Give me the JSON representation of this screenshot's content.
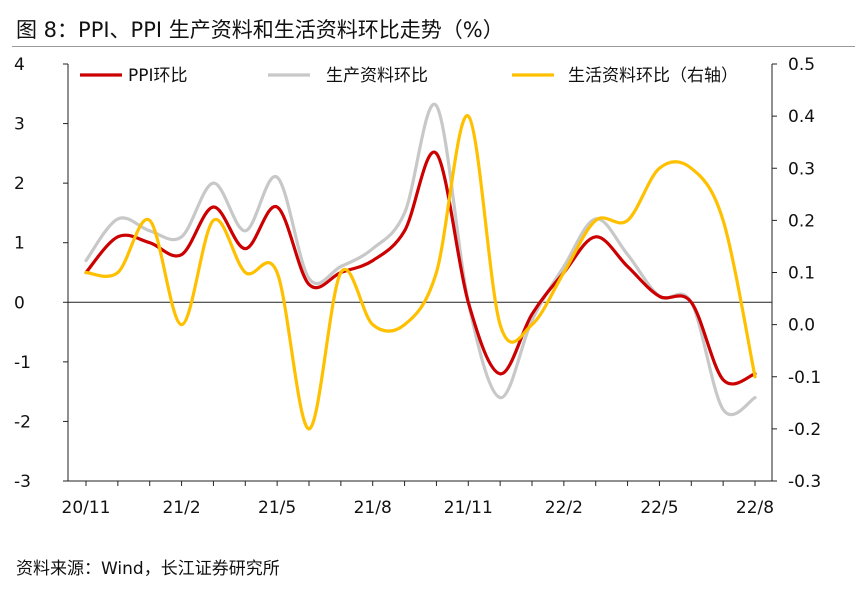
{
  "figure": {
    "title": "图 8：PPI、PPI 生产资料和生活资料环比走势（%）",
    "source": "资料来源：Wind，长江证券研究所"
  },
  "chart_data": {
    "type": "line",
    "title": "PPI、PPI 生产资料和生活资料环比走势（%）",
    "x": [
      "20/11",
      "20/12",
      "21/1",
      "21/2",
      "21/3",
      "21/4",
      "21/5",
      "21/6",
      "21/7",
      "21/8",
      "21/9",
      "21/10",
      "21/11",
      "21/12",
      "22/1",
      "22/2",
      "22/3",
      "22/4",
      "22/5",
      "22/6",
      "22/7",
      "22/8"
    ],
    "x_tick_labels": [
      "20/11",
      "21/2",
      "21/5",
      "21/8",
      "21/11",
      "22/2",
      "22/5",
      "22/8"
    ],
    "left_axis": {
      "label": "%",
      "ylim": [
        -3,
        4
      ],
      "ticks": [
        "4",
        "3",
        "2",
        "1",
        "0",
        "-1",
        "-2",
        "-3"
      ]
    },
    "right_axis": {
      "label": "%",
      "ylim": [
        -0.3,
        0.5
      ],
      "ticks": [
        "0.5",
        "0.4",
        "0.3",
        "0.2",
        "0.1",
        "0.0",
        "-0.1",
        "-0.2",
        "-0.3"
      ]
    },
    "legend": {
      "placement": "top"
    },
    "series": [
      {
        "name": "PPI环比",
        "axis": "left",
        "color": "#cc0000",
        "values": [
          0.5,
          1.1,
          1.0,
          0.8,
          1.6,
          0.9,
          1.6,
          0.3,
          0.5,
          0.7,
          1.2,
          2.5,
          0.0,
          -1.2,
          -0.2,
          0.5,
          1.1,
          0.6,
          0.1,
          0.0,
          -1.3,
          -1.2
        ]
      },
      {
        "name": "生产资料环比",
        "axis": "left",
        "color": "#c8c8c8",
        "values": [
          0.7,
          1.4,
          1.2,
          1.1,
          2.0,
          1.2,
          2.1,
          0.4,
          0.6,
          0.9,
          1.5,
          3.3,
          0.0,
          -1.6,
          -0.3,
          0.6,
          1.4,
          0.8,
          0.1,
          0.0,
          -1.8,
          -1.6
        ]
      },
      {
        "name": "生活资料环比（右轴）",
        "axis": "right",
        "color": "#ffc000",
        "values": [
          0.1,
          0.1,
          0.2,
          0.0,
          0.2,
          0.1,
          0.1,
          -0.2,
          0.1,
          0.0,
          0.0,
          0.1,
          0.4,
          0.0,
          0.0,
          0.1,
          0.2,
          0.2,
          0.3,
          0.3,
          0.2,
          -0.1
        ]
      }
    ]
  }
}
